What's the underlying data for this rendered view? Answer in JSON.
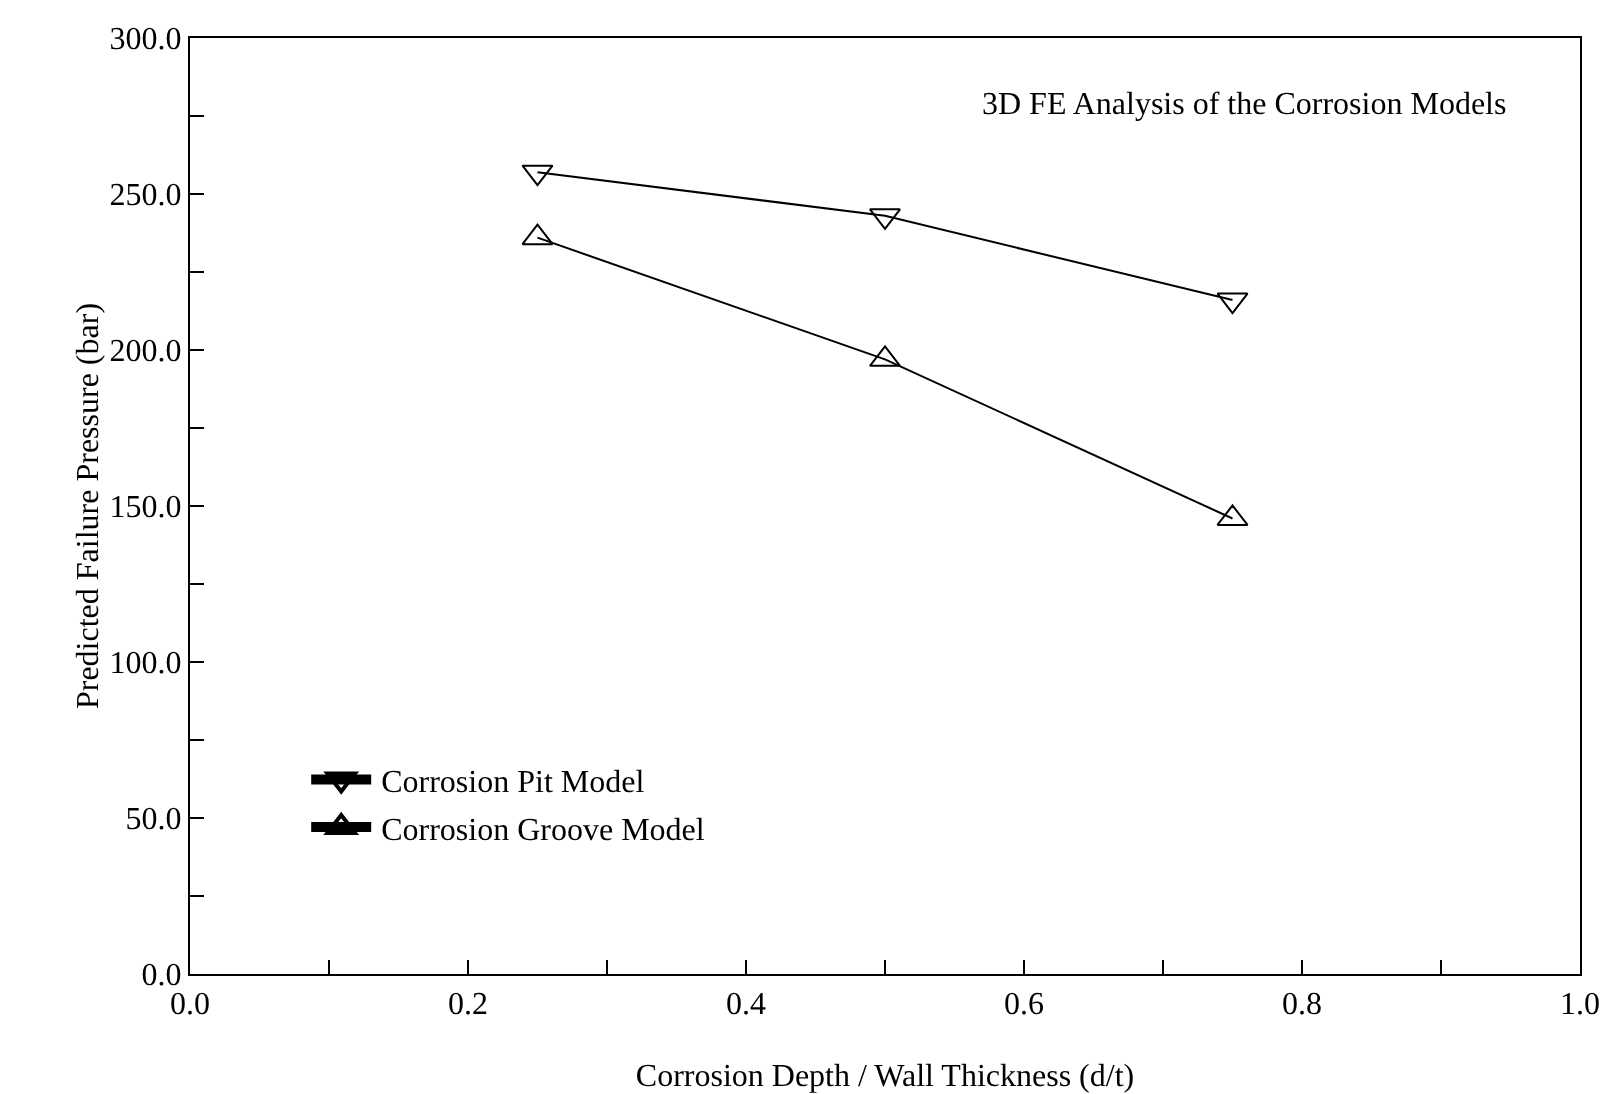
{
  "chart_data": {
    "type": "line",
    "xlabel": "Corrosion Depth / Wall Thickness (d/t)",
    "ylabel": "Predicted Failure Pressure (bar)",
    "annotations": [
      "3D FE Analysis of the Corrosion Models"
    ],
    "x": [
      0.25,
      0.5,
      0.75
    ],
    "series": [
      {
        "name": "Corrosion Pit Model",
        "color": "#000000",
        "marker": "triangle-down",
        "values": [
          257,
          243,
          216
        ]
      },
      {
        "name": "Corrosion Groove Model",
        "color": "#000000",
        "marker": "triangle",
        "values": [
          236,
          197,
          146
        ]
      }
    ],
    "xlim": [
      0,
      1
    ],
    "ylim": [
      0,
      300
    ],
    "xticks": [
      {
        "value": 0,
        "label": "0.0"
      },
      {
        "value": 0.1,
        "label": null
      },
      {
        "value": 0.2,
        "label": "0.2"
      },
      {
        "value": 0.3,
        "label": null
      },
      {
        "value": 0.4,
        "label": "0.4"
      },
      {
        "value": 0.5,
        "label": null
      },
      {
        "value": 0.6,
        "label": "0.6"
      },
      {
        "value": 0.7,
        "label": null
      },
      {
        "value": 0.8,
        "label": "0.8"
      },
      {
        "value": 0.9,
        "label": null
      },
      {
        "value": 1,
        "label": "1.0"
      }
    ],
    "yticks": [
      {
        "value": 0,
        "label": "0.0"
      },
      {
        "value": 25,
        "label": null
      },
      {
        "value": 50,
        "label": "50.0"
      },
      {
        "value": 75,
        "label": null
      },
      {
        "value": 100,
        "label": "100.0"
      },
      {
        "value": 125,
        "label": null
      },
      {
        "value": 150,
        "label": "150.0"
      },
      {
        "value": 175,
        "label": null
      },
      {
        "value": 200,
        "label": "200.0"
      },
      {
        "value": 225,
        "label": null
      },
      {
        "value": 250,
        "label": "250.0"
      },
      {
        "value": 275,
        "label": null
      },
      {
        "value": 300,
        "label": "300.0"
      }
    ],
    "grid": false,
    "legend": "bottom left",
    "line_style": "solid"
  }
}
